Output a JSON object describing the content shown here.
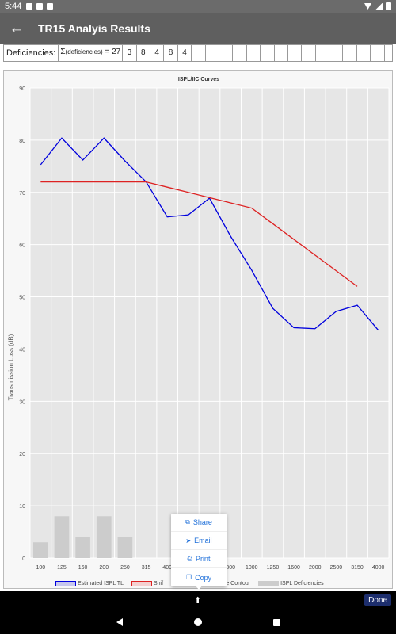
{
  "status_bar": {
    "time": "5:44"
  },
  "app_bar": {
    "title": "TR15 Analyis Results",
    "back_icon": "arrow-left-icon"
  },
  "deficiencies": {
    "label": "Deficiencies:",
    "sum_prefix": "Σ",
    "sum_sub": "(deficiencies)",
    "sum_suffix": " = 27",
    "values": [
      "3",
      "8",
      "4",
      "8",
      "4",
      "",
      "",
      "",
      "",
      "",
      "",
      "",
      "",
      "",
      "",
      "",
      "",
      "",
      "",
      "",
      ""
    ]
  },
  "chart_data": {
    "type": "line",
    "title": "ISPL/IIC Curves",
    "ylabel": "Transmission Loss (dB)",
    "xlabel": "",
    "ylim": [
      0,
      90
    ],
    "yticks": [
      0,
      10,
      20,
      30,
      40,
      50,
      60,
      70,
      80,
      90
    ],
    "categories": [
      "100",
      "125",
      "160",
      "200",
      "250",
      "315",
      "400",
      "500",
      "630",
      "800",
      "1000",
      "1250",
      "1600",
      "2000",
      "2500",
      "3150",
      "4000"
    ],
    "visible_x_ticks": [
      "100",
      "125",
      "160",
      "200",
      "250",
      "315",
      "400",
      "",
      "",
      "800",
      "1000",
      "1250",
      "1600",
      "2000",
      "2500",
      "3150",
      "4000"
    ],
    "series": [
      {
        "name": "Estimated ISPL TL",
        "type": "line",
        "color": "#0000dd",
        "values": [
          75.3,
          80.4,
          76.2,
          80.4,
          76,
          72,
          65.3,
          65.7,
          68.9,
          61.6,
          55.1,
          47.8,
          44.1,
          43.9,
          47.2,
          48.4,
          43.6
        ]
      },
      {
        "name": "Shif",
        "type": "line",
        "color": "#dd2222",
        "values": [
          72,
          72,
          72,
          72,
          72,
          72,
          71,
          70,
          69,
          68,
          67,
          64,
          61,
          58,
          55,
          52,
          null
        ]
      },
      {
        "name": "ISPL Deficiencies",
        "type": "bar",
        "color": "#cccccc",
        "values": [
          3,
          8,
          4,
          8,
          4,
          0,
          0,
          0,
          0,
          0,
          0,
          0,
          0,
          0,
          0,
          0,
          0
        ]
      }
    ],
    "legend_partial_text": "ence Contour",
    "legend_position": "bottom",
    "grid": true
  },
  "popup_menu": {
    "items": [
      {
        "label": "Share",
        "icon": "share-icon",
        "glyph": "⧉"
      },
      {
        "label": "Email",
        "icon": "send-icon",
        "glyph": "➤"
      },
      {
        "label": "Print",
        "icon": "print-icon",
        "glyph": "⎙"
      },
      {
        "label": "Copy",
        "icon": "copy-icon",
        "glyph": "❐"
      }
    ]
  },
  "bottom_bar": {
    "done_label": "Done",
    "upload_glyph": "⬆"
  }
}
